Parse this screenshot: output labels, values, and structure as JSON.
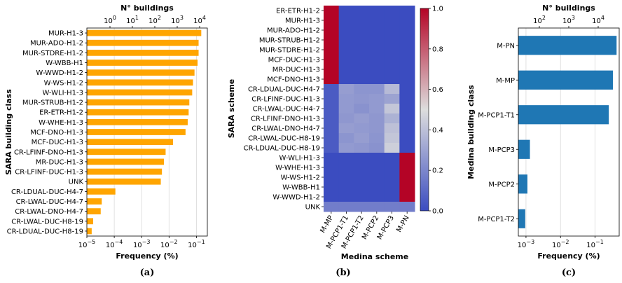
{
  "caption": "",
  "chart_data": [
    {
      "panel_label": "(a)",
      "type": "bar",
      "orientation": "horizontal",
      "xscale": "log",
      "xlim": [
        1e-05,
        0.25
      ],
      "xlabel": "Frequency (%)",
      "ylabel": "SARA building class",
      "top_axis_label": "N° buildings",
      "top_ticks": [
        "10^0",
        "10^1",
        "10^2",
        "10^3",
        "10^4"
      ],
      "bottom_ticks": [
        "10^-5",
        "10^-4",
        "10^-3",
        "10^-2",
        "10^-1"
      ],
      "grid": "vertical",
      "bar_color": "#FFA500",
      "categories": [
        "MUR-H1-3",
        "MUR-ADO-H1-2",
        "MUR-STDRE-H1-2",
        "W-WBB-H1",
        "W-WWD-H1-2",
        "W-WS-H1-2",
        "W-WLI-H1-3",
        "MUR-STRUB-H1-2",
        "ER-ETR-H1-2",
        "W-WHE-H1-3",
        "MCF-DNO-H1-3",
        "MCF-DUC-H1-3",
        "CR-LFINF-DNO-H1-3",
        "MR-DUC-H1-3",
        "CR-LFINF-DUC-H1-3",
        "UNK",
        "CR-LDUAL-DUC-H4-7",
        "CR-LWAL-DUC-H4-7",
        "CR-LWAL-DNO-H4-7",
        "CR-LWAL-DUC-H8-19",
        "CR-LDUAL-DUC-H8-19"
      ],
      "values": [
        0.15,
        0.12,
        0.12,
        0.11,
        0.085,
        0.075,
        0.07,
        0.055,
        0.052,
        0.048,
        0.04,
        0.014,
        0.0075,
        0.0065,
        0.0055,
        0.005,
        0.00011,
        3.5e-05,
        3.2e-05,
        1.7e-05,
        1.5e-05
      ]
    },
    {
      "panel_label": "(b)",
      "type": "heatmap",
      "xlabel": "Medina scheme",
      "ylabel": "SARA scheme",
      "colormap": "coolwarm",
      "colorbar_ticks": [
        "0.0",
        "0.2",
        "0.4",
        "0.6",
        "0.8",
        "1.0"
      ],
      "colorbar_range": [
        0,
        1
      ],
      "x_categories": [
        "M-MP",
        "M-PCP1-T1",
        "M-PCP1-T2",
        "M-PCP2",
        "M-PCP3",
        "M-PN"
      ],
      "y_categories": [
        "ER-ETR-H1-2",
        "MUR-H1-3",
        "MUR-ADO-H1-2",
        "MUR-STRUB-H1-2",
        "MUR-STDRE-H1-2",
        "MCF-DUC-H1-3",
        "MR-DUC-H1-3",
        "MCF-DNO-H1-3",
        "CR-LDUAL-DUC-H4-7",
        "CR-LFINF-DUC-H1-3",
        "CR-LWAL-DUC-H4-7",
        "CR-LFINF-DNO-H1-3",
        "CR-LWAL-DNO-H4-7",
        "CR-LWAL-DUC-H8-19",
        "CR-LDUAL-DUC-H8-19",
        "W-WLI-H1-3",
        "W-WHE-H1-3",
        "W-WS-H1-2",
        "W-WBB-H1",
        "W-WWD-H1-2",
        "UNK"
      ],
      "matrix": [
        [
          1,
          0,
          0,
          0,
          0,
          0
        ],
        [
          1,
          0,
          0,
          0,
          0,
          0
        ],
        [
          1,
          0,
          0,
          0,
          0,
          0
        ],
        [
          1,
          0,
          0,
          0,
          0,
          0
        ],
        [
          1,
          0,
          0,
          0,
          0,
          0
        ],
        [
          1,
          0,
          0,
          0,
          0,
          0
        ],
        [
          1,
          0,
          0,
          0,
          0,
          0
        ],
        [
          1,
          0,
          0,
          0,
          0,
          0
        ],
        [
          0.05,
          0.28,
          0.25,
          0.25,
          0.38,
          0
        ],
        [
          0.05,
          0.27,
          0.26,
          0.27,
          0.3,
          0
        ],
        [
          0.05,
          0.27,
          0.24,
          0.27,
          0.42,
          0
        ],
        [
          0.05,
          0.26,
          0.28,
          0.26,
          0.35,
          0
        ],
        [
          0.05,
          0.28,
          0.27,
          0.26,
          0.4,
          0
        ],
        [
          0.05,
          0.25,
          0.28,
          0.25,
          0.42,
          0
        ],
        [
          0.05,
          0.27,
          0.26,
          0.24,
          0.45,
          0
        ],
        [
          0,
          0,
          0,
          0,
          0,
          1
        ],
        [
          0,
          0,
          0,
          0,
          0,
          1
        ],
        [
          0,
          0,
          0,
          0,
          0,
          1
        ],
        [
          0,
          0,
          0,
          0,
          0,
          1
        ],
        [
          0,
          0,
          0,
          0,
          0,
          1
        ],
        [
          0.17,
          0.17,
          0.17,
          0.17,
          0.17,
          0.17
        ]
      ]
    },
    {
      "panel_label": "(c)",
      "type": "bar",
      "orientation": "horizontal",
      "xscale": "log",
      "xlim": [
        0.0006,
        0.5
      ],
      "xlabel": "Frequency (%)",
      "ylabel": "Medina building class",
      "top_axis_label": "N° buildings",
      "top_ticks": [
        "10^2",
        "10^3",
        "10^4"
      ],
      "bottom_ticks": [
        "10^-3",
        "10^-2",
        "10^-1"
      ],
      "grid": "vertical",
      "bar_color": "#1f77b4",
      "categories": [
        "M-PN",
        "M-MP",
        "M-PCP1-T1",
        "M-PCP3",
        "M-PCP2",
        "M-PCP1-T2"
      ],
      "values": [
        0.42,
        0.33,
        0.25,
        0.0013,
        0.0011,
        0.00095
      ]
    }
  ]
}
